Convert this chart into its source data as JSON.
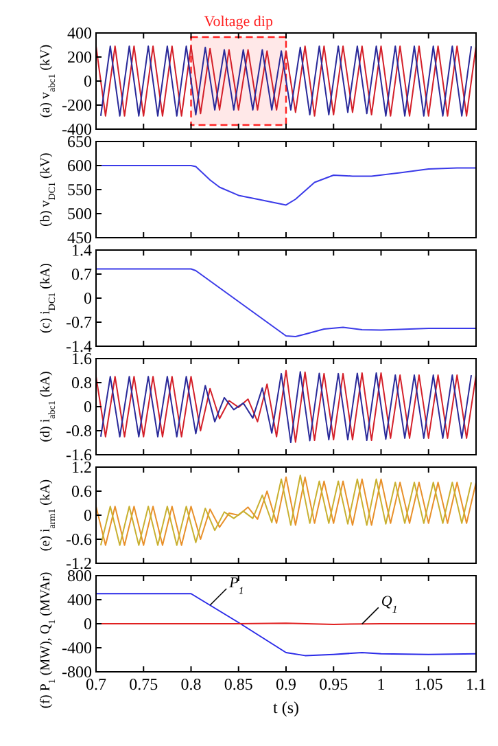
{
  "chart_data": [
    {
      "type": "line",
      "ylabel": "(a) v$_{abc1}$ (kV)",
      "xlim": [
        0.7,
        1.1
      ],
      "xticks": [
        0.7,
        0.75,
        0.8,
        0.85,
        0.9,
        0.95,
        1,
        1.05,
        1.1
      ],
      "ylim": [
        -400,
        400
      ],
      "yticks": [
        -400,
        -200,
        0,
        200,
        400
      ],
      "tick_labels": "y",
      "x": [
        0.7,
        0.71,
        0.72,
        0.73,
        0.74,
        0.75,
        0.76,
        0.77,
        0.78,
        0.79,
        0.8,
        0.81,
        0.82,
        0.83,
        0.84,
        0.85,
        0.86,
        0.87,
        0.88,
        0.89,
        0.9,
        0.91,
        0.92,
        0.93,
        0.94,
        0.95,
        0.96,
        0.97,
        0.98,
        0.99,
        1,
        1.01,
        1.02,
        1.03,
        1.04,
        1.05,
        1.06,
        1.07,
        1.08,
        1.09,
        1.1
      ],
      "bands": [
        {
          "axis": "x",
          "from": 0.8,
          "to": 0.9,
          "label": "Voltage dip",
          "color": "#ff2020"
        }
      ],
      "series": [
        {
          "color": "#d4202a",
          "values": [
            290,
            -290,
            290,
            -290,
            290,
            -290,
            290,
            -290,
            290,
            -290,
            290,
            -270,
            270,
            -240,
            260,
            -240,
            260,
            -240,
            250,
            -240,
            250,
            -260,
            290,
            -290,
            290,
            -280,
            290,
            -260,
            290,
            -280,
            290,
            -290,
            290,
            -290,
            290,
            -290,
            290,
            -290,
            290,
            -290,
            290
          ]
        },
        {
          "color": "#2a2a9a",
          "x": [
            0.705,
            0.715,
            0.725,
            0.735,
            0.745,
            0.755,
            0.765,
            0.775,
            0.785,
            0.795,
            0.805,
            0.815,
            0.825,
            0.835,
            0.845,
            0.855,
            0.865,
            0.875,
            0.885,
            0.895,
            0.905,
            0.915,
            0.925,
            0.935,
            0.945,
            0.955,
            0.965,
            0.975,
            0.985,
            0.995,
            1.005,
            1.015,
            1.025,
            1.035,
            1.045,
            1.055,
            1.065,
            1.075,
            1.085,
            1.095
          ],
          "values": [
            -290,
            290,
            -290,
            290,
            -290,
            290,
            -290,
            290,
            -290,
            290,
            -280,
            280,
            -240,
            260,
            -240,
            260,
            -240,
            260,
            -240,
            250,
            -240,
            280,
            -280,
            290,
            -280,
            290,
            -260,
            290,
            -270,
            290,
            -290,
            290,
            -290,
            290,
            -290,
            290,
            -290,
            290,
            -290,
            290
          ]
        }
      ]
    },
    {
      "type": "line",
      "ylabel": "(b) v$_{DC1}$ (kV)",
      "xlim": [
        0.7,
        1.1
      ],
      "xticks": [
        0.7,
        0.75,
        0.8,
        0.85,
        0.9,
        0.95,
        1,
        1.05,
        1.1
      ],
      "ylim": [
        450,
        650
      ],
      "yticks": [
        450,
        500,
        550,
        600,
        650
      ],
      "tick_labels": "y",
      "series": [
        {
          "color": "#3a3ae8",
          "x": [
            0.7,
            0.8,
            0.805,
            0.82,
            0.83,
            0.85,
            0.87,
            0.9,
            0.91,
            0.93,
            0.95,
            0.97,
            0.99,
            1.02,
            1.05,
            1.08,
            1.1
          ],
          "values": [
            600,
            600,
            598,
            570,
            555,
            538,
            530,
            518,
            530,
            565,
            580,
            578,
            578,
            585,
            593,
            595,
            595
          ]
        }
      ]
    },
    {
      "type": "line",
      "ylabel": "(c) i$_{DC1}$ (kA)",
      "xlim": [
        0.7,
        1.1
      ],
      "xticks": [
        0.7,
        0.75,
        0.8,
        0.85,
        0.9,
        0.95,
        1,
        1.05,
        1.1
      ],
      "ylim": [
        -1.4,
        1.4
      ],
      "yticks": [
        -1.4,
        -0.7,
        0,
        0.7,
        1.4
      ],
      "tick_labels": "y",
      "series": [
        {
          "color": "#3a3ae8",
          "x": [
            0.7,
            0.8,
            0.805,
            0.9,
            0.91,
            0.92,
            0.94,
            0.96,
            0.98,
            1,
            1.05,
            1.1
          ],
          "values": [
            0.85,
            0.85,
            0.8,
            -1.1,
            -1.12,
            -1.05,
            -0.9,
            -0.85,
            -0.92,
            -0.93,
            -0.88,
            -0.88
          ]
        }
      ]
    },
    {
      "type": "line",
      "ylabel": "(d) i$_{abc1}$ (kA)",
      "xlim": [
        0.7,
        1.1
      ],
      "xticks": [
        0.7,
        0.75,
        0.8,
        0.85,
        0.9,
        0.95,
        1,
        1.05,
        1.1
      ],
      "ylim": [
        -1.6,
        1.6
      ],
      "yticks": [
        -1.6,
        -0.8,
        0,
        0.8,
        1.6
      ],
      "tick_labels": "y",
      "x": [
        0.7,
        0.71,
        0.72,
        0.73,
        0.74,
        0.75,
        0.76,
        0.77,
        0.78,
        0.79,
        0.8,
        0.81,
        0.82,
        0.83,
        0.84,
        0.85,
        0.86,
        0.87,
        0.88,
        0.89,
        0.9,
        0.91,
        0.92,
        0.93,
        0.94,
        0.95,
        0.96,
        0.97,
        0.98,
        0.99,
        1,
        1.01,
        1.02,
        1.03,
        1.04,
        1.05,
        1.06,
        1.07,
        1.08,
        1.09,
        1.1
      ],
      "series": [
        {
          "color": "#d4202a",
          "values": [
            1,
            -1,
            1,
            -1,
            1,
            -1,
            1,
            -1,
            1,
            -1,
            1,
            -0.8,
            0.6,
            -0.4,
            0.2,
            -0.02,
            0.25,
            -0.5,
            0.75,
            -1,
            1.2,
            -1.18,
            1.15,
            -1.12,
            1.1,
            -1.1,
            1.1,
            -1.1,
            1.12,
            -1.12,
            1.12,
            -1.05,
            1.05,
            -1.05,
            1.05,
            -1.05,
            1.05,
            -1.05,
            1.05,
            -1.05,
            1.05
          ]
        },
        {
          "color": "#2a2a9a",
          "x": [
            0.705,
            0.715,
            0.725,
            0.735,
            0.745,
            0.755,
            0.765,
            0.775,
            0.785,
            0.795,
            0.805,
            0.815,
            0.825,
            0.835,
            0.845,
            0.855,
            0.865,
            0.875,
            0.885,
            0.895,
            0.905,
            0.915,
            0.925,
            0.935,
            0.945,
            0.955,
            0.965,
            0.975,
            0.985,
            0.995,
            1.005,
            1.015,
            1.025,
            1.035,
            1.045,
            1.055,
            1.065,
            1.075,
            1.085,
            1.095
          ],
          "values": [
            -1,
            1,
            -1,
            1,
            -1,
            1,
            -1,
            1,
            -1,
            1,
            -0.9,
            0.7,
            -0.5,
            0.3,
            -0.1,
            0.12,
            -0.38,
            0.62,
            -0.88,
            1.1,
            -1.19,
            1.16,
            -1.13,
            1.11,
            -1.1,
            1.1,
            -1.1,
            1.11,
            -1.12,
            1.12,
            -1.08,
            1.05,
            -1.05,
            1.05,
            -1.05,
            1.05,
            -1.05,
            1.05,
            -1.05,
            1.05
          ]
        }
      ]
    },
    {
      "type": "line",
      "ylabel": "(e) i$_{arm1}$ (kA)",
      "xlim": [
        0.7,
        1.1
      ],
      "xticks": [
        0.7,
        0.75,
        0.8,
        0.85,
        0.9,
        0.95,
        1,
        1.05,
        1.1
      ],
      "ylim": [
        -1.2,
        1.2
      ],
      "yticks": [
        -1.2,
        -0.6,
        0,
        0.6,
        1.2
      ],
      "tick_labels": "y",
      "x": [
        0.7,
        0.71,
        0.72,
        0.73,
        0.74,
        0.75,
        0.76,
        0.77,
        0.78,
        0.79,
        0.8,
        0.81,
        0.82,
        0.83,
        0.84,
        0.85,
        0.86,
        0.87,
        0.88,
        0.89,
        0.9,
        0.91,
        0.92,
        0.93,
        0.94,
        0.95,
        0.96,
        0.97,
        0.98,
        0.99,
        1,
        1.01,
        1.02,
        1.03,
        1.04,
        1.05,
        1.06,
        1.07,
        1.08,
        1.09,
        1.1
      ],
      "series": [
        {
          "color": "#e8902a",
          "values": [
            0.22,
            -0.75,
            0.22,
            -0.75,
            0.22,
            -0.75,
            0.22,
            -0.75,
            0.22,
            -0.75,
            0.22,
            -0.6,
            0.15,
            -0.3,
            0.05,
            0,
            0.2,
            -0.1,
            0.6,
            -0.2,
            0.95,
            -0.25,
            0.95,
            -0.2,
            0.85,
            -0.2,
            0.85,
            -0.25,
            0.9,
            -0.25,
            0.9,
            -0.2,
            0.82,
            -0.2,
            0.82,
            -0.2,
            0.82,
            -0.2,
            0.82,
            -0.2,
            0.82
          ]
        },
        {
          "color": "#c8b030",
          "x": [
            0.705,
            0.715,
            0.725,
            0.735,
            0.745,
            0.755,
            0.765,
            0.775,
            0.785,
            0.795,
            0.805,
            0.815,
            0.825,
            0.835,
            0.845,
            0.855,
            0.865,
            0.875,
            0.885,
            0.895,
            0.905,
            0.915,
            0.925,
            0.935,
            0.945,
            0.955,
            0.965,
            0.975,
            0.985,
            0.995,
            1.005,
            1.015,
            1.025,
            1.035,
            1.045,
            1.055,
            1.065,
            1.075,
            1.085,
            1.095
          ],
          "values": [
            -0.75,
            0.22,
            -0.75,
            0.22,
            -0.75,
            0.22,
            -0.75,
            0.22,
            -0.75,
            0.22,
            -0.68,
            0.17,
            -0.38,
            0.08,
            -0.08,
            0.1,
            -0.08,
            0.5,
            -0.18,
            0.9,
            -0.25,
            1,
            -0.2,
            0.85,
            -0.2,
            0.85,
            -0.22,
            0.9,
            -0.25,
            0.9,
            -0.22,
            0.82,
            -0.2,
            0.82,
            -0.2,
            0.82,
            -0.2,
            0.82,
            -0.2,
            0.82
          ]
        }
      ]
    },
    {
      "type": "line",
      "ylabel": "(f) P$_{1}$ (MW), Q$_{1}$ (MVAr)",
      "xlabel": "t (s)",
      "xlim": [
        0.7,
        1.1
      ],
      "xticks": [
        0.7,
        0.75,
        0.8,
        0.85,
        0.9,
        0.95,
        1,
        1.05,
        1.1
      ],
      "ylim": [
        -800,
        800
      ],
      "yticks": [
        -800,
        -400,
        0,
        400,
        800
      ],
      "series": [
        {
          "name": "P$_{1}$",
          "color": "#2a2ae8",
          "x": [
            0.7,
            0.8,
            0.85,
            0.9,
            0.92,
            0.95,
            0.98,
            1,
            1.05,
            1.1
          ],
          "values": [
            500,
            500,
            20,
            -480,
            -530,
            -510,
            -480,
            -500,
            -510,
            -500
          ]
        },
        {
          "name": "Q$_{1}$",
          "color": "#e02020",
          "x": [
            0.7,
            0.85,
            0.9,
            0.95,
            1,
            1.1
          ],
          "values": [
            0,
            0,
            10,
            -10,
            0,
            0
          ]
        }
      ]
    }
  ]
}
